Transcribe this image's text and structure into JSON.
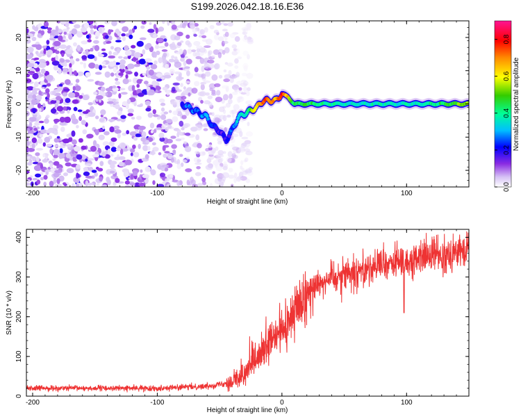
{
  "title": "S199.2026.042.18.16.E36",
  "chart_data": [
    {
      "type": "heatmap",
      "name": "spectrogram",
      "xlabel": "Height of straight line (km)",
      "ylabel": "Frequency (Hz)",
      "xlim": [
        -205,
        150
      ],
      "ylim": [
        -25,
        25
      ],
      "xticks": [
        -200,
        -100,
        0,
        100
      ],
      "xtick_labels": [
        "-200",
        "-100",
        "0",
        "100"
      ],
      "yticks": [
        -20,
        -10,
        0,
        10,
        20
      ],
      "ytick_labels": [
        "-20",
        "-10",
        "0",
        "10",
        "20"
      ],
      "ridge": {
        "description": "Dominant frequency ridge, normalized amplitude",
        "x": [
          -80,
          -70,
          -60,
          -55,
          -50,
          -45,
          -40,
          -35,
          -30,
          -25,
          -20,
          -15,
          -10,
          -5,
          0,
          5,
          10,
          20,
          40,
          60,
          80,
          100,
          120,
          150
        ],
        "y": [
          0,
          -2,
          -4,
          -7,
          -8,
          -11,
          -8,
          -4,
          -3,
          -2,
          -1,
          1,
          1,
          1,
          3,
          2,
          0,
          0,
          0,
          0,
          0,
          0,
          0,
          0
        ],
        "amplitude": [
          0.25,
          0.3,
          0.28,
          0.22,
          0.2,
          0.18,
          0.28,
          0.35,
          0.4,
          0.55,
          0.7,
          0.85,
          0.8,
          0.75,
          0.85,
          0.7,
          0.45,
          0.5,
          0.42,
          0.4,
          0.42,
          0.4,
          0.45,
          0.6
        ]
      },
      "noise_region_x": [
        -205,
        -40
      ],
      "colorbar": {
        "label": "Normalized spectral amplitude",
        "range": [
          0,
          0.9
        ],
        "ticks": [
          "0.0",
          "0.2",
          "0.4",
          "0.6",
          "0.8"
        ],
        "tick_values": [
          0.0,
          0.2,
          0.4,
          0.6,
          0.8
        ]
      }
    },
    {
      "type": "line",
      "name": "snr",
      "xlabel": "Height of straight line (km)",
      "ylabel": "SNR (10 * v/v)",
      "xlim": [
        -205,
        150
      ],
      "ylim": [
        0,
        420
      ],
      "xticks": [
        -200,
        -100,
        0,
        100
      ],
      "xtick_labels": [
        "-200",
        "-100",
        "0",
        "100"
      ],
      "yticks": [
        0,
        100,
        200,
        300,
        400
      ],
      "ytick_labels": [
        "0",
        "100",
        "200",
        "300",
        "400"
      ],
      "color": "#ee3333",
      "trend": {
        "x": [
          -205,
          -150,
          -100,
          -60,
          -40,
          -30,
          -20,
          -10,
          0,
          10,
          20,
          30,
          40,
          60,
          80,
          100,
          120,
          150
        ],
        "y": [
          20,
          20,
          20,
          25,
          35,
          55,
          90,
          130,
          165,
          210,
          260,
          290,
          300,
          320,
          330,
          340,
          355,
          365
        ]
      }
    }
  ]
}
